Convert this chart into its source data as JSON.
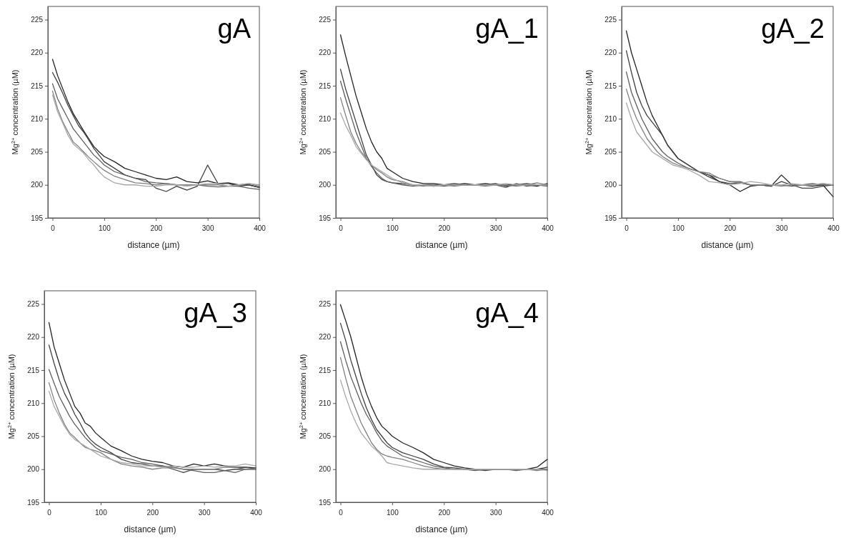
{
  "chart_data": [
    {
      "type": "line",
      "title": "gA",
      "xlabel": "distance (µm)",
      "ylabel": "Mg$^{2+}$ concentration (µM)",
      "xlim": [
        -9,
        400
      ],
      "ylim": [
        195,
        227
      ],
      "xticks": [
        0,
        100,
        200,
        300,
        400
      ],
      "yticks": [
        195,
        200,
        205,
        210,
        215,
        220,
        225
      ],
      "x": [
        0,
        10,
        20,
        30,
        40,
        50,
        60,
        70,
        80,
        90,
        100,
        120,
        140,
        160,
        180,
        200,
        220,
        240,
        260,
        280,
        300,
        320,
        340,
        360,
        380,
        400
      ],
      "series": [
        {
          "color": "#222222",
          "values": [
            219,
            216.5,
            214.5,
            212.5,
            210.8,
            209.5,
            208.2,
            207,
            205.8,
            205,
            204.3,
            203.5,
            202.5,
            202,
            201.5,
            201,
            200.8,
            201.2,
            200.5,
            200.3,
            200.6,
            200.2,
            200.3,
            200,
            200,
            199.6
          ]
        },
        {
          "color": "#404040",
          "values": [
            217,
            215.5,
            213.8,
            212,
            210.5,
            209,
            208,
            206.8,
            205.5,
            204.5,
            203.5,
            202.5,
            201.5,
            201,
            200.8,
            199.5,
            199,
            199.8,
            199.2,
            199.8,
            203,
            200.2,
            200.2,
            199.8,
            200,
            199.6
          ]
        },
        {
          "color": "#5e5e5e",
          "values": [
            215.3,
            213,
            211.5,
            210,
            208.5,
            207.5,
            206.5,
            205.5,
            204.5,
            203.8,
            203,
            202,
            201.5,
            201,
            200.5,
            200.3,
            200.2,
            200,
            200,
            200,
            199.8,
            199.7,
            199.8,
            199.8,
            199.5,
            199.3
          ]
        },
        {
          "color": "#808080",
          "values": [
            214.2,
            211.5,
            209.5,
            208,
            206.5,
            205.8,
            205,
            204.2,
            203.5,
            202.8,
            202.2,
            201.3,
            200.8,
            200.3,
            200.2,
            200,
            200.2,
            200,
            200,
            200,
            200,
            200,
            199.8,
            200,
            200.2,
            199.8
          ]
        },
        {
          "color": "#a8a8a8",
          "values": [
            213.6,
            211,
            209.3,
            207.5,
            206.2,
            205.5,
            204.8,
            203.8,
            203,
            202,
            201.2,
            200.3,
            200,
            200,
            199.8,
            199.8,
            200,
            200,
            199.8,
            200,
            200.2,
            200.2,
            199.8,
            200,
            200.2,
            200
          ]
        }
      ]
    },
    {
      "type": "line",
      "title": "gA_1",
      "xlabel": "distance (µm)",
      "ylabel": "Mg$^{2+}$ concentration (µM)",
      "xlim": [
        -9,
        400
      ],
      "ylim": [
        195,
        227
      ],
      "xticks": [
        0,
        100,
        200,
        300,
        400
      ],
      "yticks": [
        195,
        200,
        205,
        210,
        215,
        220,
        225
      ],
      "x": [
        0,
        10,
        20,
        30,
        40,
        50,
        60,
        70,
        80,
        90,
        100,
        120,
        140,
        160,
        180,
        200,
        220,
        240,
        260,
        280,
        300,
        320,
        340,
        360,
        380,
        400
      ],
      "series": [
        {
          "color": "#222222",
          "values": [
            222.7,
            219.5,
            216.5,
            213.5,
            211,
            208.5,
            206.5,
            205,
            204,
            202.5,
            202,
            201,
            200.5,
            200.2,
            200.2,
            200,
            200,
            200.2,
            200,
            200.2,
            200,
            200,
            200,
            200,
            199.8,
            200.2
          ]
        },
        {
          "color": "#404040",
          "values": [
            217.5,
            214.5,
            212,
            209.5,
            207,
            204.5,
            203,
            201.5,
            200.8,
            200.5,
            200.3,
            200.2,
            200,
            200,
            199.8,
            200,
            200.2,
            200,
            200,
            200,
            200.2,
            199.8,
            200,
            200.2,
            200,
            200
          ]
        },
        {
          "color": "#5e5e5e",
          "values": [
            215.7,
            213,
            210.5,
            208,
            206,
            204,
            202.8,
            201.8,
            201,
            200.5,
            200.3,
            200,
            199.8,
            200,
            200,
            199.8,
            200,
            200,
            200,
            200,
            200,
            199.6,
            200.2,
            199.8,
            200,
            199.8
          ]
        },
        {
          "color": "#808080",
          "values": [
            213.2,
            210.5,
            208,
            206.3,
            205,
            204,
            203,
            202.3,
            201.8,
            201.2,
            200.8,
            200.5,
            200,
            199.8,
            200,
            200,
            199.8,
            200,
            200,
            199.8,
            200,
            200,
            199.8,
            200,
            200.3,
            200
          ]
        },
        {
          "color": "#a8a8a8",
          "values": [
            210.9,
            209,
            207.5,
            205.8,
            204.8,
            203.8,
            203,
            202.5,
            202,
            201.5,
            201,
            200.3,
            200,
            200,
            199.8,
            200,
            200,
            200,
            200,
            200,
            200,
            200.2,
            200,
            200,
            200,
            200
          ]
        }
      ]
    },
    {
      "type": "line",
      "title": "gA_2",
      "xlabel": "distance (µm)",
      "ylabel": "Mg$^{2+}$ concentration (µM)",
      "xlim": [
        -9,
        400
      ],
      "ylim": [
        195,
        227
      ],
      "xticks": [
        0,
        100,
        200,
        300,
        400
      ],
      "yticks": [
        195,
        200,
        205,
        210,
        215,
        220,
        225
      ],
      "x": [
        0,
        10,
        20,
        30,
        40,
        50,
        60,
        70,
        80,
        90,
        100,
        120,
        140,
        160,
        180,
        200,
        220,
        240,
        260,
        280,
        300,
        320,
        340,
        360,
        380,
        400
      ],
      "series": [
        {
          "color": "#222222",
          "values": [
            223.3,
            220,
            217.5,
            215,
            212.5,
            210.5,
            209,
            207.5,
            206,
            205,
            204,
            203,
            202,
            201.5,
            200.5,
            200,
            199,
            199.8,
            200,
            199.8,
            201.5,
            200,
            200,
            199.8,
            200,
            198.2
          ]
        },
        {
          "color": "#404040",
          "values": [
            220.3,
            217,
            214,
            212,
            210.5,
            209.5,
            208.5,
            207.5,
            206,
            205,
            204,
            203,
            202,
            201.2,
            200.5,
            200.2,
            200.3,
            200,
            200,
            199.8,
            200.5,
            200,
            199.5,
            199.5,
            199.8,
            200
          ]
        },
        {
          "color": "#5e5e5e",
          "values": [
            217.1,
            214,
            212,
            210,
            208.5,
            207,
            206,
            205,
            204.3,
            203.8,
            203.3,
            202.5,
            202,
            201.5,
            201,
            200.5,
            200.5,
            200,
            200,
            200,
            200,
            199.8,
            200,
            200.2,
            200,
            200
          ]
        },
        {
          "color": "#808080",
          "values": [
            214.5,
            212,
            210,
            208.5,
            207,
            206,
            205,
            204.3,
            203.8,
            203.3,
            203,
            202.5,
            202,
            201.8,
            201,
            200.5,
            200.3,
            200,
            200,
            200,
            199.8,
            200,
            200,
            200,
            200.2,
            200
          ]
        },
        {
          "color": "#a8a8a8",
          "values": [
            212.4,
            210,
            208,
            207,
            206,
            205,
            204.5,
            204,
            203.5,
            203,
            202.8,
            202.3,
            201.5,
            200.5,
            200.3,
            200,
            200.2,
            200.5,
            200.3,
            200,
            200,
            200.2,
            200,
            200,
            200.2,
            200
          ]
        }
      ]
    },
    {
      "type": "line",
      "title": "gA_3",
      "xlabel": "distance (µm)",
      "ylabel": "Mg$^{2+}$ concentration (µM)",
      "xlim": [
        -9,
        400
      ],
      "ylim": [
        195,
        227
      ],
      "xticks": [
        0,
        100,
        200,
        300,
        400
      ],
      "yticks": [
        195,
        200,
        205,
        210,
        215,
        220,
        225
      ],
      "x": [
        0,
        10,
        20,
        30,
        40,
        50,
        60,
        70,
        80,
        90,
        100,
        120,
        140,
        160,
        180,
        200,
        220,
        240,
        260,
        280,
        300,
        320,
        340,
        360,
        380,
        400
      ],
      "series": [
        {
          "color": "#222222",
          "values": [
            222.2,
            218.5,
            216,
            213.5,
            211.5,
            209.5,
            208.5,
            207,
            206.5,
            205.5,
            204.8,
            203.5,
            202.8,
            202,
            201.5,
            201.2,
            201,
            200.5,
            200.3,
            200.8,
            200.5,
            200.8,
            200.5,
            200.3,
            200.3,
            200.2
          ]
        },
        {
          "color": "#404040",
          "values": [
            218.8,
            216,
            213.5,
            211.5,
            210,
            208.3,
            207,
            205.5,
            204.5,
            203.8,
            203.3,
            202.5,
            201.5,
            201,
            200.8,
            200.5,
            200.5,
            200,
            199.5,
            200,
            200,
            200,
            199.8,
            200,
            200,
            200
          ]
        },
        {
          "color": "#5e5e5e",
          "values": [
            215.1,
            213,
            211,
            209.5,
            208,
            206.8,
            205.8,
            204.8,
            204,
            203.3,
            202.8,
            202.3,
            201.8,
            201.5,
            201,
            200.8,
            200.5,
            200.3,
            200,
            199.8,
            199.5,
            199.5,
            199.8,
            199.5,
            200,
            200.2
          ]
        },
        {
          "color": "#808080",
          "values": [
            213.1,
            210.5,
            208.5,
            206.8,
            205.5,
            204.8,
            204,
            203.3,
            203,
            202.8,
            202.5,
            201.5,
            200.8,
            200.5,
            200.3,
            200,
            200.2,
            200.2,
            200,
            200,
            200,
            200,
            200.3,
            200.3,
            200,
            200
          ]
        },
        {
          "color": "#a8a8a8",
          "values": [
            211.8,
            209.5,
            208,
            206.5,
            205.3,
            204.5,
            204,
            203.5,
            203,
            202.5,
            202,
            201.5,
            201,
            200.8,
            200.5,
            200.5,
            200.3,
            200.5,
            200.3,
            200.3,
            200.5,
            200.3,
            200.5,
            200.5,
            200.8,
            200.5
          ]
        }
      ]
    },
    {
      "type": "line",
      "title": "gA_4",
      "xlabel": "distance (µm)",
      "ylabel": "Mg$^{2+}$ concentration (µM)",
      "xlim": [
        -9,
        400
      ],
      "ylim": [
        195,
        227
      ],
      "xticks": [
        0,
        100,
        200,
        300,
        400
      ],
      "yticks": [
        195,
        200,
        205,
        210,
        215,
        220,
        225
      ],
      "x": [
        0,
        10,
        20,
        30,
        40,
        50,
        60,
        70,
        80,
        90,
        100,
        120,
        140,
        160,
        180,
        200,
        220,
        240,
        260,
        280,
        300,
        320,
        340,
        360,
        380,
        400
      ],
      "series": [
        {
          "color": "#222222",
          "values": [
            224.9,
            222.5,
            220,
            217,
            214,
            211.5,
            209.5,
            207.8,
            206.5,
            205.8,
            205,
            204,
            203.3,
            202.5,
            201.5,
            201,
            200.5,
            200.2,
            200,
            200,
            200,
            200,
            200,
            200,
            200.3,
            201.5
          ]
        },
        {
          "color": "#404040",
          "values": [
            222.1,
            219.5,
            216.5,
            214,
            211.5,
            209.3,
            207.5,
            206,
            205,
            204,
            203.3,
            202.5,
            202,
            201.5,
            200.8,
            200.3,
            200.2,
            200,
            200,
            199.8,
            200,
            200,
            200,
            200,
            200,
            200.3
          ]
        },
        {
          "color": "#5e5e5e",
          "values": [
            219.3,
            216.5,
            214,
            212,
            210,
            208.3,
            207,
            205.5,
            204.3,
            203.5,
            203,
            202,
            201.5,
            201,
            200.5,
            200.2,
            200,
            200,
            199.8,
            200,
            200,
            200,
            199.8,
            200,
            200,
            200
          ]
        },
        {
          "color": "#808080",
          "values": [
            216.9,
            213.8,
            211,
            209,
            207,
            205.5,
            204,
            203,
            202.3,
            202,
            201.8,
            201.5,
            201,
            200.5,
            200.2,
            200,
            200,
            200,
            200,
            200,
            200,
            200,
            200,
            200,
            199.8,
            200
          ]
        },
        {
          "color": "#a8a8a8",
          "values": [
            213.5,
            211,
            208.8,
            207,
            205.5,
            204.5,
            203.5,
            202.8,
            202,
            201,
            200.8,
            200.5,
            200.2,
            200,
            200,
            200,
            200,
            200,
            200,
            200,
            200,
            200,
            200,
            200,
            200,
            199.8
          ]
        }
      ]
    }
  ]
}
